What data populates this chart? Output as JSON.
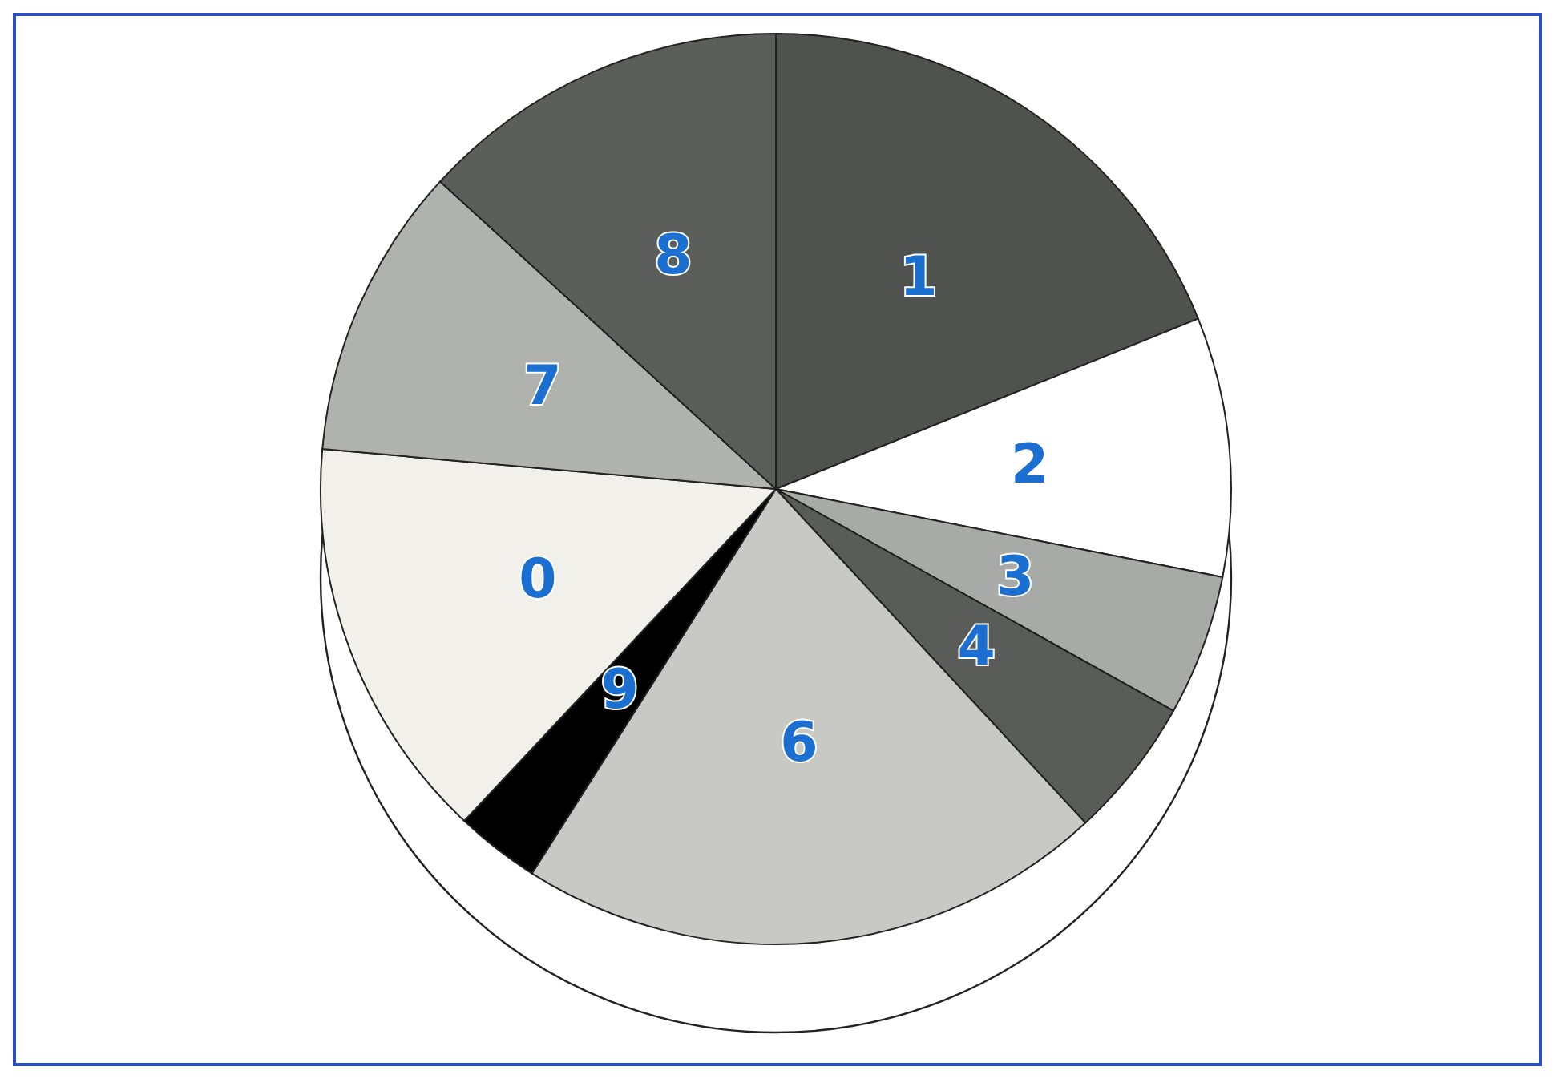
{
  "chart_data": {
    "type": "pie",
    "categories": [
      "1",
      "2",
      "3",
      "4",
      "6",
      "9",
      "0",
      "7",
      "8"
    ],
    "values": [
      18.9,
      9.2,
      5,
      5,
      20.9,
      3,
      14.4,
      10.4,
      13.2
    ],
    "colors": [
      "#505250",
      "#ffffff",
      "#a8aaa8",
      "#5a5c5a",
      "#c8c8c4",
      "#000000",
      "#f2f0ea",
      "#b0b2ae",
      "#5c5e5c"
    ],
    "legend": false
  }
}
